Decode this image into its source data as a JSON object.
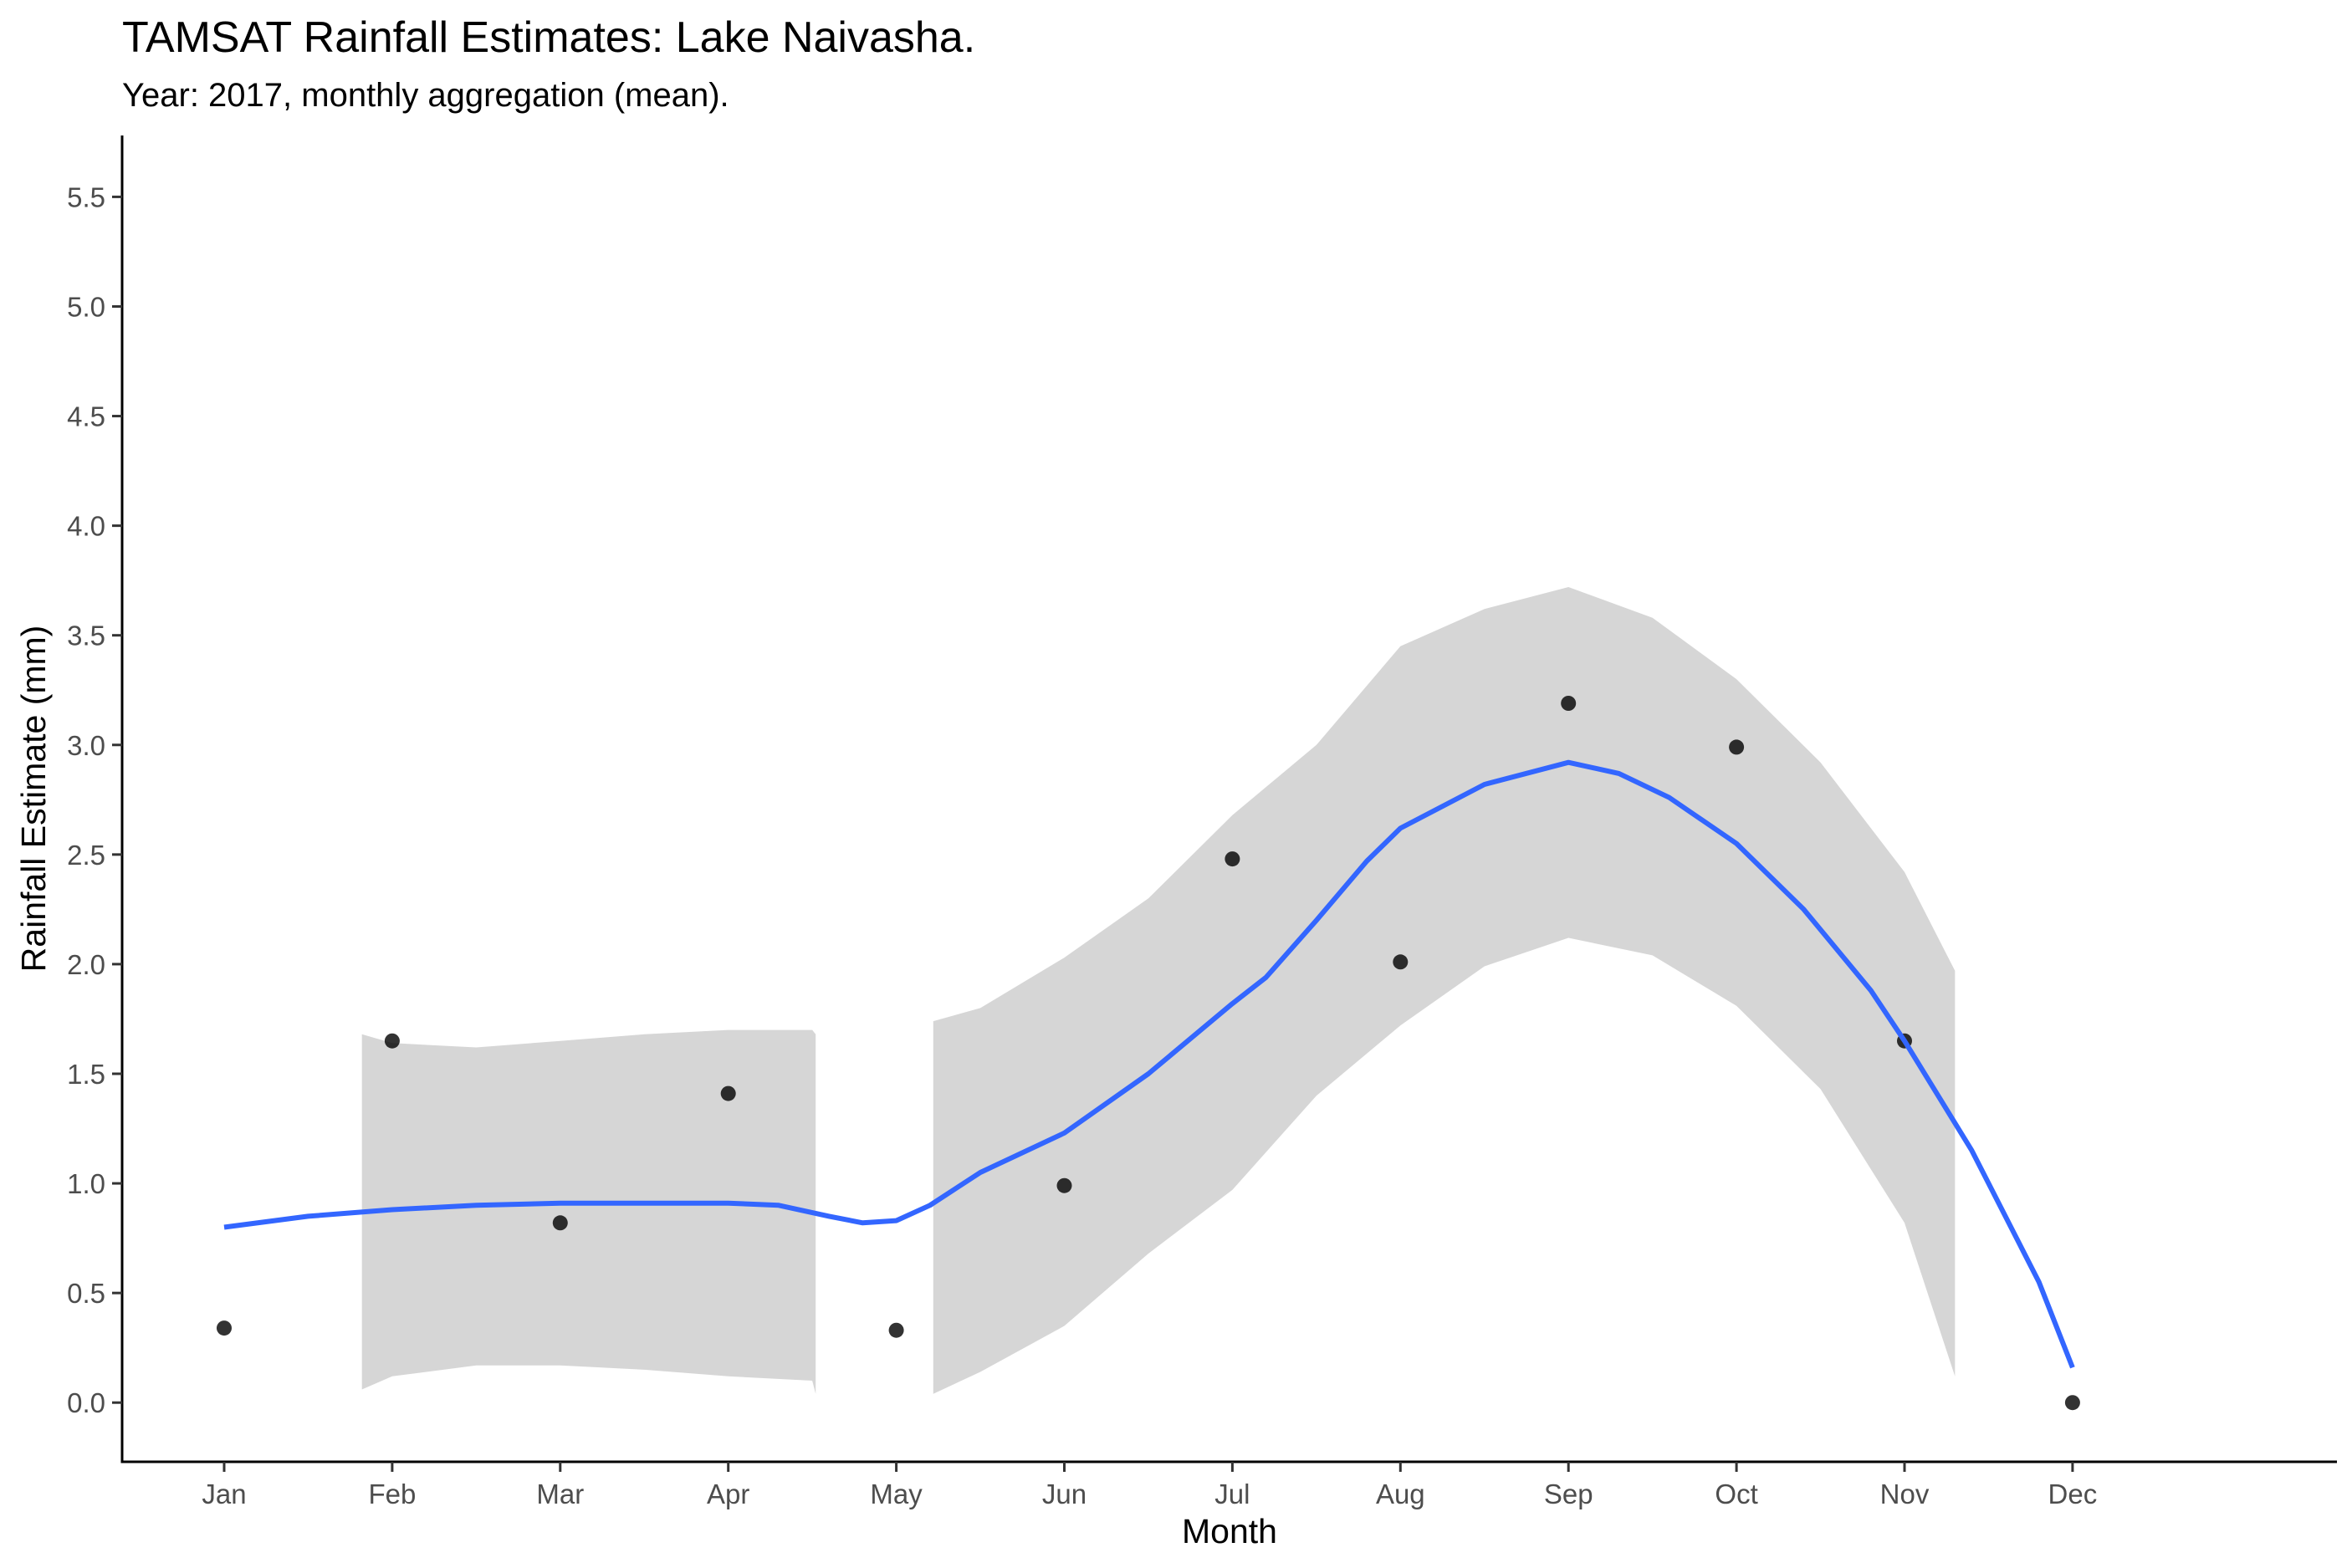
{
  "chart_data": {
    "type": "scatter",
    "title": "TAMSAT Rainfall Estimates: Lake Naivasha.",
    "subtitle": "Year: 2017, monthly aggregation (mean).",
    "xlabel": "Month",
    "ylabel": "Rainfall Estimate (mm)",
    "categories": [
      "Jan",
      "Feb",
      "Mar",
      "Apr",
      "May",
      "Jun",
      "Jul",
      "Aug",
      "Sep",
      "Oct",
      "Nov",
      "Dec"
    ],
    "yticks": [
      "0.0",
      "0.5",
      "1.0",
      "1.5",
      "2.0",
      "2.5",
      "3.0",
      "3.5",
      "4.0",
      "4.5",
      "5.0",
      "5.5"
    ],
    "ylim": [
      -0.27,
      5.78
    ],
    "grid": false,
    "legend": "none",
    "points": [
      0.34,
      1.65,
      0.82,
      1.41,
      0.33,
      0.99,
      2.48,
      2.01,
      3.19,
      2.99,
      1.65,
      0.0
    ],
    "smooth": {
      "x": [
        1,
        1.5,
        2,
        2.5,
        3,
        3.5,
        4,
        4.3,
        4.6,
        4.8,
        5,
        5.2,
        5.5,
        6,
        6.5,
        7,
        7.2,
        7.5,
        7.8,
        8,
        8.5,
        9,
        9.3,
        9.6,
        10,
        10.4,
        10.8,
        11,
        11.4,
        11.8,
        12
      ],
      "y": [
        0.8,
        0.85,
        0.88,
        0.9,
        0.91,
        0.91,
        0.91,
        0.9,
        0.85,
        0.82,
        0.83,
        0.9,
        1.05,
        1.23,
        1.5,
        1.82,
        1.94,
        2.2,
        2.47,
        2.62,
        2.82,
        2.92,
        2.87,
        2.76,
        2.55,
        2.25,
        1.88,
        1.65,
        1.15,
        0.55,
        0.16
      ]
    },
    "ribbon": [
      {
        "x": [
          1.82,
          2.0,
          2.5,
          3.0,
          3.5,
          4.0,
          4.5,
          4.52
        ],
        "upper": [
          1.68,
          1.64,
          1.62,
          1.65,
          1.68,
          1.7,
          1.7,
          1.68
        ],
        "lower": [
          0.06,
          0.12,
          0.17,
          0.17,
          0.15,
          0.12,
          0.1,
          0.04
        ]
      },
      {
        "x": [
          5.22,
          5.5,
          6.0,
          6.5,
          7.0,
          7.5,
          8.0,
          8.5,
          9.0,
          9.5,
          10.0,
          10.5,
          11.0,
          11.3
        ],
        "upper": [
          1.74,
          1.8,
          2.03,
          2.3,
          2.68,
          3.0,
          3.45,
          3.62,
          3.72,
          3.58,
          3.3,
          2.92,
          2.42,
          1.97
        ],
        "lower": [
          0.04,
          0.14,
          0.35,
          0.68,
          0.97,
          1.4,
          1.72,
          1.99,
          2.12,
          2.04,
          1.81,
          1.43,
          0.82,
          0.12
        ]
      }
    ],
    "colors": {
      "line": "#3366ff",
      "ribbon": "#d6d6d6",
      "point": "#000000",
      "axis": "#000000"
    }
  }
}
